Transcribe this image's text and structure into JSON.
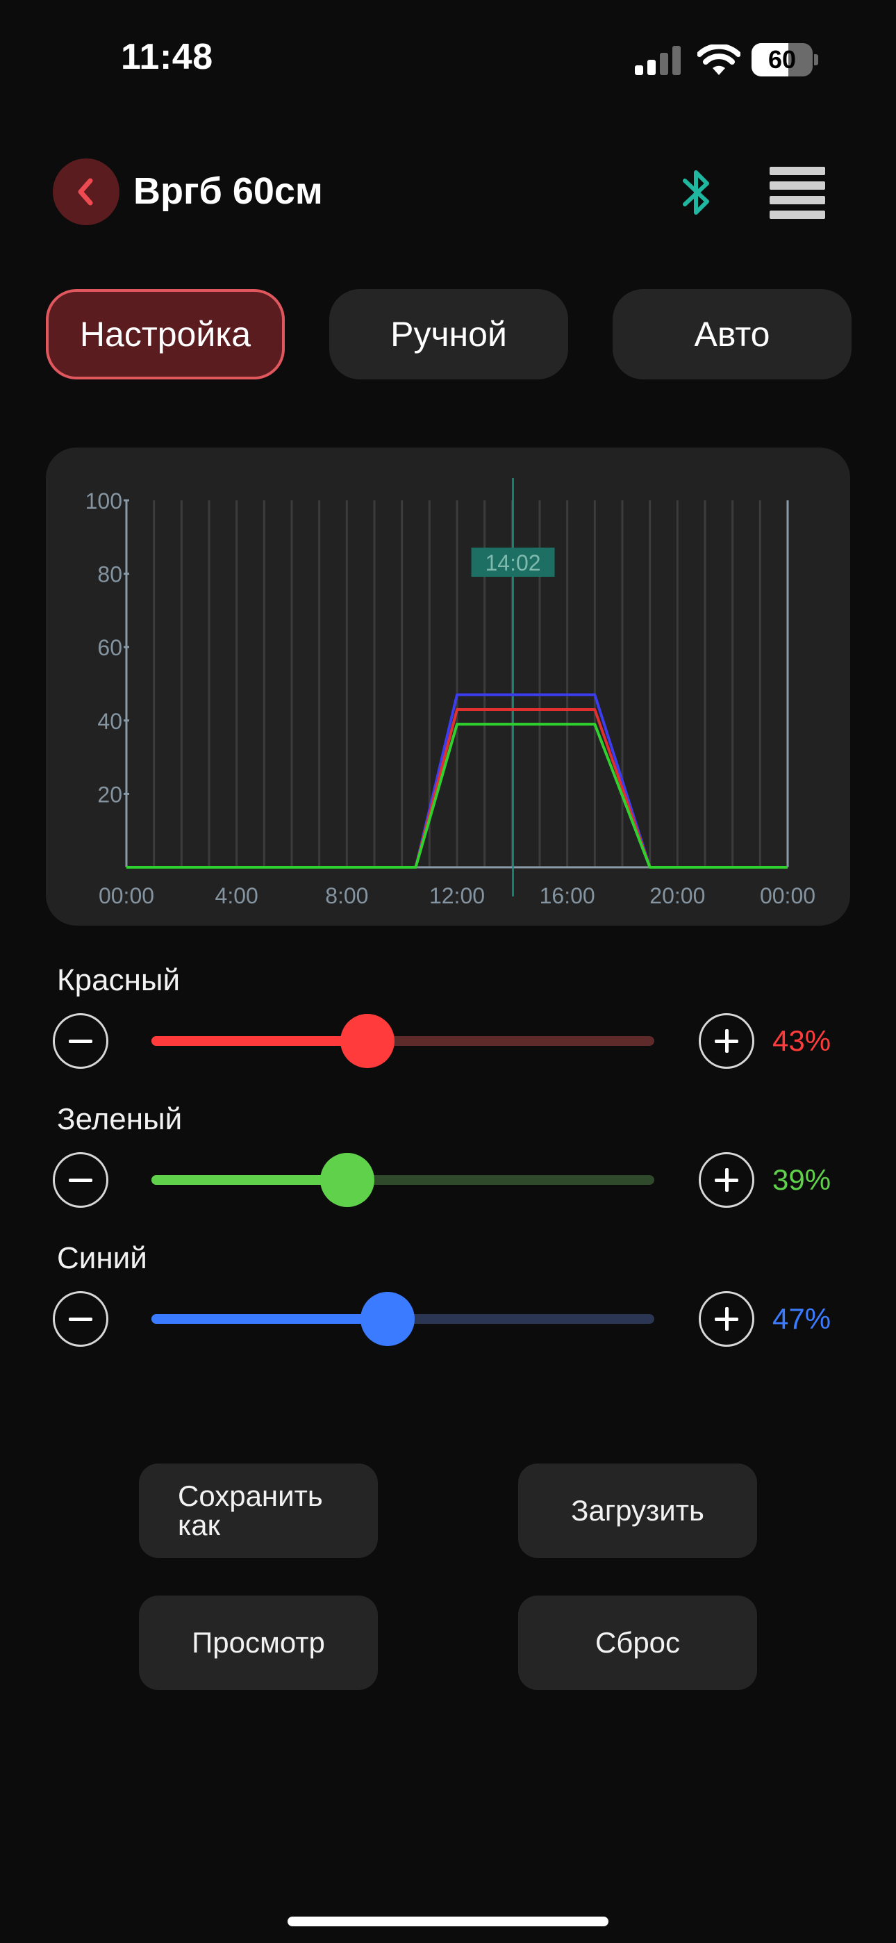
{
  "status_bar": {
    "time": "11:48",
    "battery_percent": "60",
    "battery_level": 0.6,
    "signal_bars_active": 2,
    "signal_bars_total": 4
  },
  "header": {
    "title": "Вргб 60см",
    "back_icon": "chevron-left-icon",
    "bluetooth_icon": "bluetooth-icon",
    "menu_icon": "hamburger-menu-icon"
  },
  "tabs": [
    {
      "label": "Настройка",
      "active": true
    },
    {
      "label": "Ручной",
      "active": false
    },
    {
      "label": "Авто",
      "active": false
    }
  ],
  "chart_data": {
    "type": "line",
    "xlabel": "",
    "ylabel": "",
    "x_tick_labels": [
      "00:00",
      "4:00",
      "8:00",
      "12:00",
      "16:00",
      "20:00",
      "00:00"
    ],
    "y_tick_labels": [
      "100",
      "80",
      "60",
      "40",
      "20"
    ],
    "ylim": [
      0,
      100
    ],
    "xlim_hours": [
      0,
      24
    ],
    "grid": "vertical lines every hour",
    "current_time_marker": {
      "label": "14:02",
      "hour": 14.03
    },
    "series": [
      {
        "color": "#3d3df0",
        "points": [
          [
            0,
            0
          ],
          [
            10.5,
            0
          ],
          [
            12,
            47
          ],
          [
            17,
            47
          ],
          [
            19,
            0
          ],
          [
            24,
            0
          ]
        ]
      },
      {
        "color": "#e03030",
        "points": [
          [
            0,
            0
          ],
          [
            10.5,
            0
          ],
          [
            12,
            43
          ],
          [
            17,
            43
          ],
          [
            19,
            0
          ],
          [
            24,
            0
          ]
        ]
      },
      {
        "color": "#2fd12f",
        "points": [
          [
            0,
            0
          ],
          [
            10.5,
            0
          ],
          [
            12,
            39
          ],
          [
            17,
            39
          ],
          [
            19,
            0
          ],
          [
            24,
            0
          ]
        ]
      }
    ]
  },
  "sliders": [
    {
      "label": "Красный",
      "value": 43,
      "value_text": "43%",
      "color": "#ff3b3b",
      "track_color": "#5e2a2a"
    },
    {
      "label": "Зеленый",
      "value": 39,
      "value_text": "39%",
      "color": "#5fd14a",
      "track_color": "#2f4a2a"
    },
    {
      "label": "Синий",
      "value": 47,
      "value_text": "47%",
      "color": "#3b7bff",
      "track_color": "#2a3654"
    }
  ],
  "actions": {
    "save_as_line1": "Сохранить",
    "save_as_line2": "как",
    "load": "Загрузить",
    "preview": "Просмотр",
    "reset": "Сброс"
  }
}
